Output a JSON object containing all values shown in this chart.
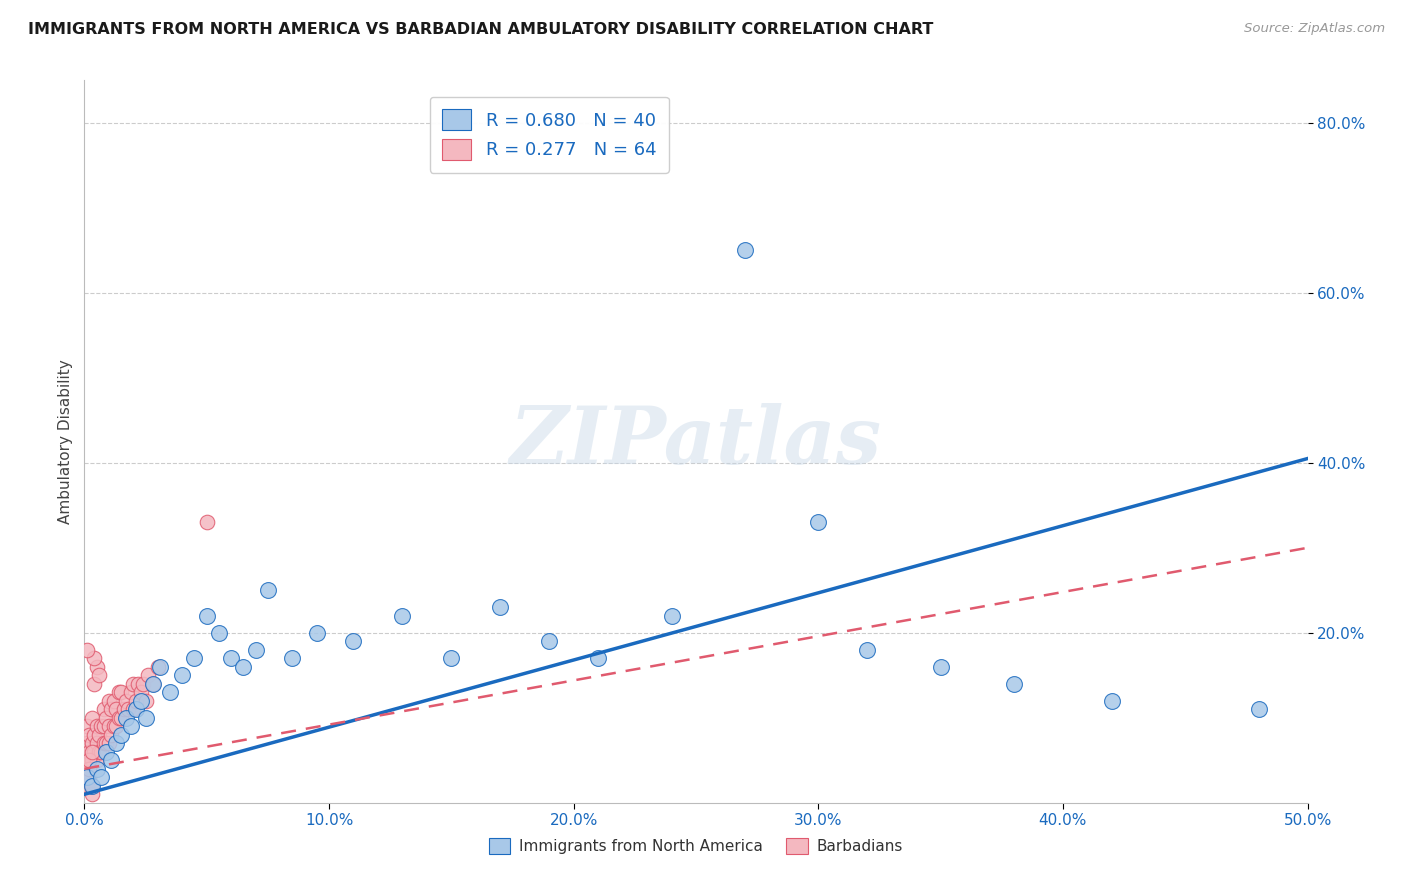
{
  "title": "IMMIGRANTS FROM NORTH AMERICA VS BARBADIAN AMBULATORY DISABILITY CORRELATION CHART",
  "source": "Source: ZipAtlas.com",
  "ylabel": "Ambulatory Disability",
  "xlim": [
    0.0,
    0.5
  ],
  "ylim": [
    0.0,
    0.85
  ],
  "xtick_labels": [
    "0.0%",
    "10.0%",
    "20.0%",
    "30.0%",
    "40.0%",
    "50.0%"
  ],
  "xtick_vals": [
    0.0,
    0.1,
    0.2,
    0.3,
    0.4,
    0.5
  ],
  "ytick_labels": [
    "20.0%",
    "40.0%",
    "60.0%",
    "80.0%"
  ],
  "ytick_vals": [
    0.2,
    0.4,
    0.6,
    0.8
  ],
  "blue_R": 0.68,
  "blue_N": 40,
  "pink_R": 0.277,
  "pink_N": 64,
  "blue_color": "#a8c8e8",
  "pink_color": "#f4b8c0",
  "blue_line_color": "#1a6abf",
  "pink_line_color": "#e05a6e",
  "grid_color": "#cccccc",
  "background_color": "#ffffff",
  "watermark": "ZIPatlas",
  "blue_line_x": [
    0.0,
    0.5
  ],
  "blue_line_y": [
    0.01,
    0.405
  ],
  "pink_line_x": [
    0.0,
    0.5
  ],
  "pink_line_y": [
    0.04,
    0.3
  ],
  "blue_scatter_x": [
    0.001,
    0.003,
    0.005,
    0.007,
    0.009,
    0.011,
    0.013,
    0.015,
    0.017,
    0.019,
    0.021,
    0.023,
    0.025,
    0.028,
    0.031,
    0.035,
    0.04,
    0.045,
    0.05,
    0.055,
    0.06,
    0.065,
    0.07,
    0.075,
    0.085,
    0.095,
    0.11,
    0.13,
    0.15,
    0.17,
    0.19,
    0.21,
    0.24,
    0.27,
    0.3,
    0.32,
    0.35,
    0.38,
    0.42,
    0.48
  ],
  "blue_scatter_y": [
    0.03,
    0.02,
    0.04,
    0.03,
    0.06,
    0.05,
    0.07,
    0.08,
    0.1,
    0.09,
    0.11,
    0.12,
    0.1,
    0.14,
    0.16,
    0.13,
    0.15,
    0.17,
    0.22,
    0.2,
    0.17,
    0.16,
    0.18,
    0.25,
    0.17,
    0.2,
    0.19,
    0.22,
    0.17,
    0.23,
    0.19,
    0.17,
    0.22,
    0.65,
    0.33,
    0.18,
    0.16,
    0.14,
    0.12,
    0.11
  ],
  "pink_scatter_x": [
    0.001,
    0.001,
    0.001,
    0.002,
    0.002,
    0.002,
    0.003,
    0.003,
    0.003,
    0.004,
    0.004,
    0.005,
    0.005,
    0.005,
    0.006,
    0.006,
    0.007,
    0.007,
    0.008,
    0.008,
    0.008,
    0.009,
    0.009,
    0.01,
    0.01,
    0.01,
    0.011,
    0.011,
    0.012,
    0.012,
    0.013,
    0.013,
    0.014,
    0.014,
    0.015,
    0.015,
    0.016,
    0.017,
    0.018,
    0.019,
    0.02,
    0.02,
    0.021,
    0.022,
    0.023,
    0.024,
    0.025,
    0.026,
    0.028,
    0.03,
    0.001,
    0.002,
    0.003,
    0.004,
    0.005,
    0.006,
    0.001,
    0.002,
    0.003,
    0.004,
    0.001,
    0.002,
    0.003,
    0.05
  ],
  "pink_scatter_y": [
    0.05,
    0.07,
    0.09,
    0.04,
    0.06,
    0.08,
    0.05,
    0.07,
    0.1,
    0.06,
    0.08,
    0.05,
    0.07,
    0.09,
    0.06,
    0.08,
    0.06,
    0.09,
    0.07,
    0.09,
    0.11,
    0.07,
    0.1,
    0.07,
    0.09,
    0.12,
    0.08,
    0.11,
    0.09,
    0.12,
    0.09,
    0.11,
    0.1,
    0.13,
    0.1,
    0.13,
    0.11,
    0.12,
    0.11,
    0.13,
    0.11,
    0.14,
    0.12,
    0.14,
    0.13,
    0.14,
    0.12,
    0.15,
    0.14,
    0.16,
    0.02,
    0.03,
    0.01,
    0.14,
    0.16,
    0.15,
    0.03,
    0.04,
    0.02,
    0.17,
    0.18,
    0.05,
    0.06,
    0.33
  ]
}
